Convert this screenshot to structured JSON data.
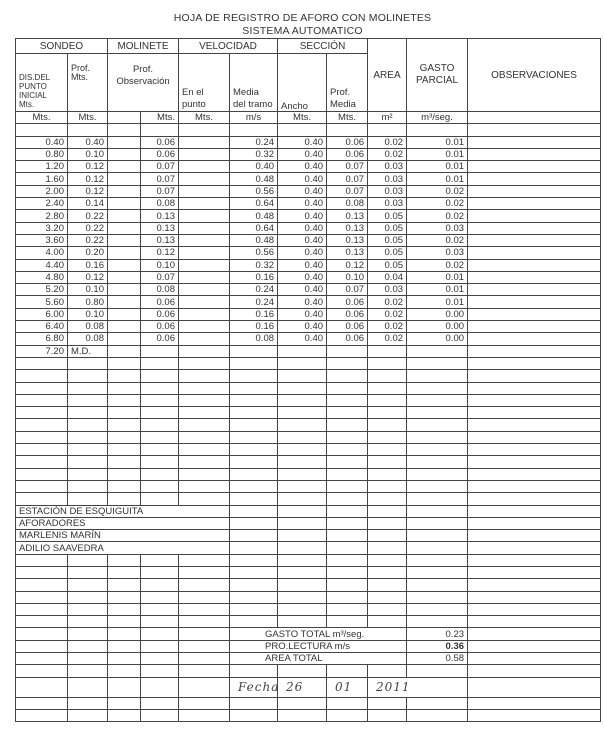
{
  "title": "HOJA DE REGISTRO DE AFORO CON MOLINETES",
  "subtitle": "SISTEMA AUTOMATICO",
  "groups": {
    "sondeo": "SONDEO",
    "molinete": "MOLINETE",
    "velocidad": "VELOCIDAD",
    "seccion": "SECCIÓN",
    "area": "AREA",
    "gasto": "GASTO PARCIAL",
    "obs": "OBSERVACIONES"
  },
  "subheaders": {
    "dis": "DIS.DEL PUNTO INICIAL Mts.",
    "prof": "Prof. Mts.",
    "prof_obs": "Prof. Observación",
    "en_punto": "En el punto",
    "media_tramo": "Media del tramo",
    "ancho": "Ancho",
    "prof_media": "Prof. Media"
  },
  "units": [
    "Mts.",
    "Mts.",
    "",
    "Mts.",
    "Mts.",
    "m/s",
    "Mts.",
    "Mts.",
    "m²",
    "m³/seg.",
    ""
  ],
  "rows": [
    [
      "0.40",
      "0.40",
      "",
      "0.06",
      "",
      "0.24",
      "0.40",
      "0.06",
      "0.02",
      "0.01",
      ""
    ],
    [
      "0.80",
      "0.10",
      "",
      "0.06",
      "",
      "0.32",
      "0.40",
      "0.06",
      "0.02",
      "0.01",
      ""
    ],
    [
      "1.20",
      "0.12",
      "",
      "0.07",
      "",
      "0.40",
      "0.40",
      "0.07",
      "0.03",
      "0.01",
      ""
    ],
    [
      "1.60",
      "0.12",
      "",
      "0.07",
      "",
      "0.48",
      "0.40",
      "0.07",
      "0.03",
      "0.01",
      ""
    ],
    [
      "2.00",
      "0.12",
      "",
      "0.07",
      "",
      "0.56",
      "0.40",
      "0.07",
      "0.03",
      "0.02",
      ""
    ],
    [
      "2.40",
      "0.14",
      "",
      "0.08",
      "",
      "0.64",
      "0.40",
      "0.08",
      "0.03",
      "0.02",
      ""
    ],
    [
      "2.80",
      "0.22",
      "",
      "0.13",
      "",
      "0.48",
      "0.40",
      "0.13",
      "0.05",
      "0.02",
      ""
    ],
    [
      "3.20",
      "0.22",
      "",
      "0.13",
      "",
      "0.64",
      "0.40",
      "0.13",
      "0.05",
      "0.03",
      ""
    ],
    [
      "3.60",
      "0.22",
      "",
      "0.13",
      "",
      "0.48",
      "0.40",
      "0.13",
      "0.05",
      "0.02",
      ""
    ],
    [
      "4.00",
      "0.20",
      "",
      "0.12",
      "",
      "0.56",
      "0.40",
      "0.13",
      "0.05",
      "0.03",
      ""
    ],
    [
      "4.40",
      "0.16",
      "",
      "0.10",
      "",
      "0.32",
      "0.40",
      "0.12",
      "0.05",
      "0.02",
      ""
    ],
    [
      "4.80",
      "0.12",
      "",
      "0.07",
      "",
      "0.16",
      "0.40",
      "0.10",
      "0.04",
      "0.01",
      ""
    ],
    [
      "5.20",
      "0.10",
      "",
      "0.08",
      "",
      "0.24",
      "0.40",
      "0.07",
      "0.03",
      "0.01",
      ""
    ],
    [
      "5.60",
      "0.80",
      "",
      "0.06",
      "",
      "0.24",
      "0.40",
      "0.06",
      "0.02",
      "0.01",
      ""
    ],
    [
      "6.00",
      "0.10",
      "",
      "0.06",
      "",
      "0.16",
      "0.40",
      "0.06",
      "0.02",
      "0.00",
      ""
    ],
    [
      "6.40",
      "0.08",
      "",
      "0.06",
      "",
      "0.16",
      "0.40",
      "0.06",
      "0.02",
      "0.00",
      ""
    ],
    [
      "6.80",
      "0.08",
      "",
      "0.06",
      "",
      "0.08",
      "0.40",
      "0.06",
      "0.02",
      "0.00",
      ""
    ],
    [
      "7.20",
      "M.D.",
      "",
      "",
      "",
      "",
      "",
      "",
      "",
      "",
      ""
    ]
  ],
  "station_lines": [
    "ESTACIÓN DE ESQUIGUITA",
    "AFORADORES",
    "MARLENIS MARÍN",
    "ADILIO SAAVEDRA"
  ],
  "totals": [
    {
      "label": "GASTO TOTAL m³/seg.",
      "value": "0.23"
    },
    {
      "label": "PRO.LECTURA m/s",
      "value": "0.36"
    },
    {
      "label": "AREA TOTAL",
      "value": "0.58"
    }
  ],
  "date": {
    "label": "Fecha",
    "day": "26",
    "month": "01",
    "year": "2011"
  }
}
